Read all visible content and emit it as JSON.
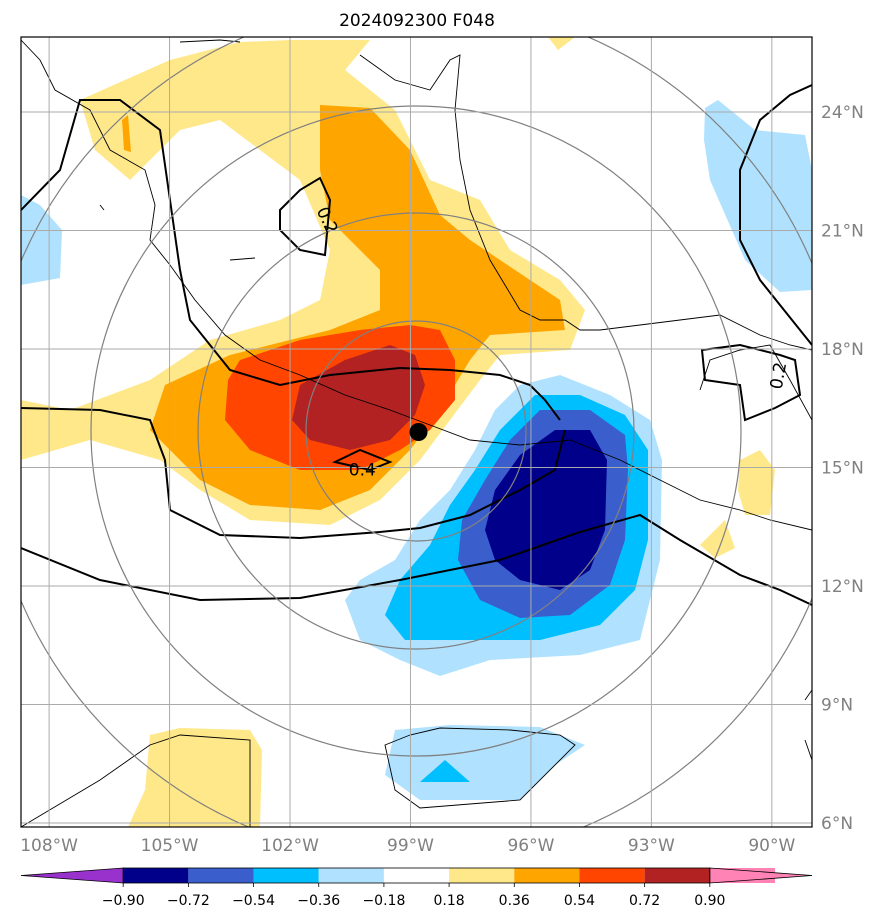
{
  "title": "2024092300 F048",
  "lon_ticks": [
    {
      "deg": -108,
      "label": "108°W"
    },
    {
      "deg": -105,
      "label": "105°W"
    },
    {
      "deg": -102,
      "label": "102°W"
    },
    {
      "deg": -99,
      "label": "99°W"
    },
    {
      "deg": -96,
      "label": "96°W"
    },
    {
      "deg": -93,
      "label": "93°W"
    },
    {
      "deg": -90,
      "label": "90°W"
    }
  ],
  "lat_ticks": [
    {
      "deg": 24,
      "label": "24°N"
    },
    {
      "deg": 21,
      "label": "21°N"
    },
    {
      "deg": 18,
      "label": "18°N"
    },
    {
      "deg": 15,
      "label": "15°N"
    },
    {
      "deg": 12,
      "label": "12°N"
    },
    {
      "deg": 9,
      "label": "9°N"
    },
    {
      "deg": 6,
      "label": "6°N"
    }
  ],
  "colorbar": {
    "levels": [
      "−0.90",
      "−0.72",
      "−0.54",
      "−0.36",
      "−0.18",
      "0.18",
      "0.36",
      "0.54",
      "0.72",
      "0.90"
    ],
    "colors": [
      "#9932cc",
      "#00008b",
      "#3a5fcd",
      "#00bfff",
      "#b0e2ff",
      "#ffffff",
      "#ffe88a",
      "#ffa500",
      "#ff4500",
      "#b22222",
      "#ff83b4"
    ]
  },
  "contour_labels": [
    {
      "text": "0.2",
      "lon": -101.2,
      "lat": 21.2,
      "rotate": 65
    },
    {
      "text": "0.4",
      "lon": -100.2,
      "lat": 14.8,
      "rotate": 0
    },
    {
      "text": "0.2",
      "lon": -89.7,
      "lat": 17.3,
      "rotate": -80
    }
  ],
  "center_marker": {
    "lon": -98.8,
    "lat": 15.9
  }
}
